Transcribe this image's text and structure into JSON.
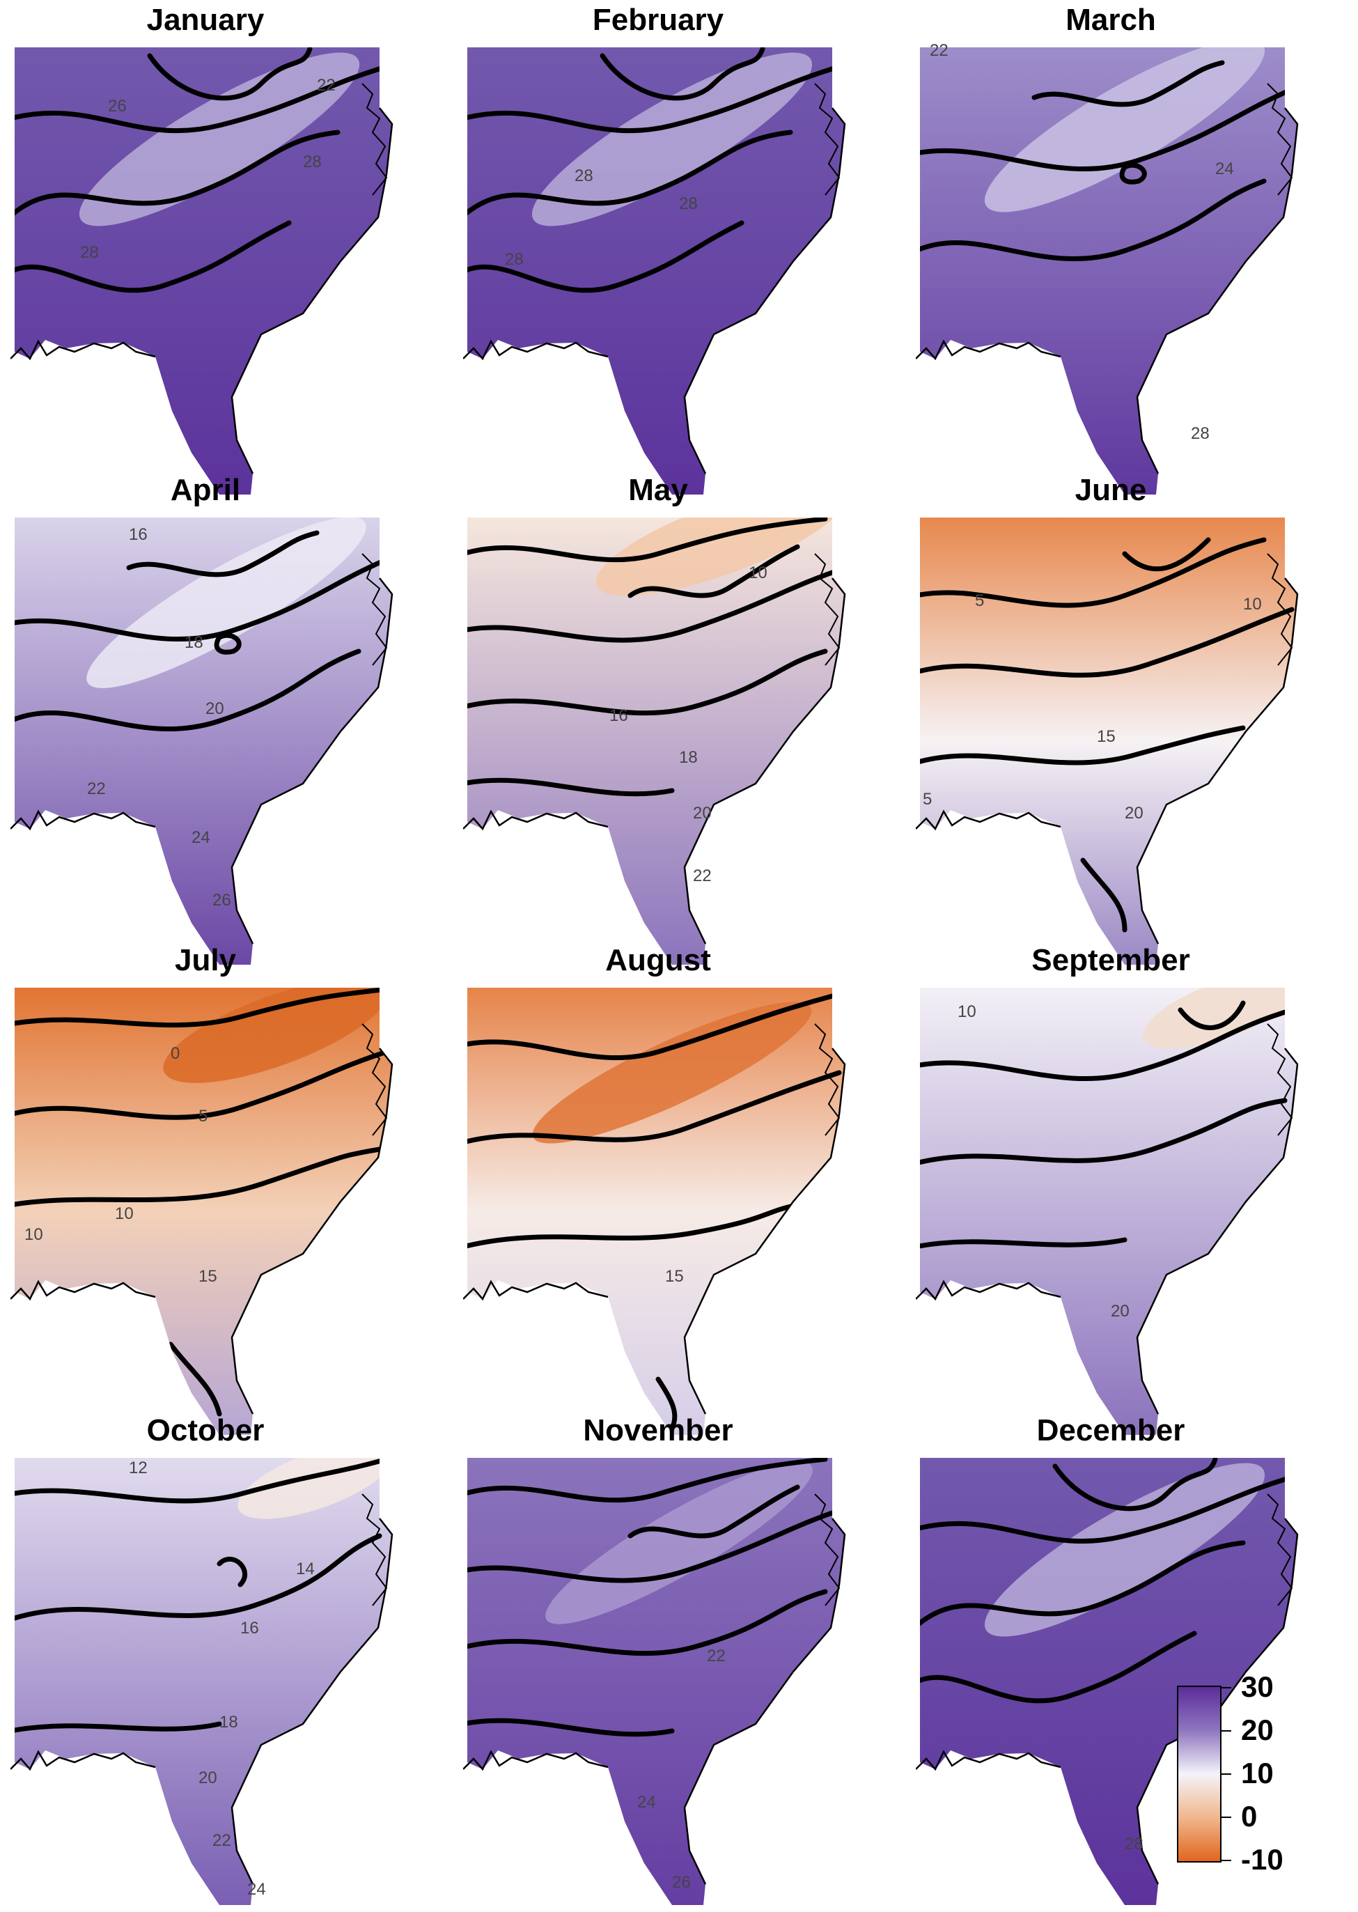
{
  "figure": {
    "panels": [
      {
        "title": "January",
        "scheme": 0,
        "labels": [
          "22",
          "26",
          "28",
          "28"
        ]
      },
      {
        "title": "February",
        "scheme": 0,
        "labels": [
          "28",
          "28",
          "28"
        ]
      },
      {
        "title": "March",
        "scheme": 1,
        "labels": [
          "22",
          "24",
          "28"
        ]
      },
      {
        "title": "April",
        "scheme": 2,
        "labels": [
          "16",
          "18",
          "20",
          "22",
          "24",
          "26"
        ]
      },
      {
        "title": "May",
        "scheme": 3,
        "labels": [
          "10",
          "16",
          "18",
          "20",
          "22"
        ]
      },
      {
        "title": "June",
        "scheme": 4,
        "labels": [
          "5",
          "10",
          "15",
          "20",
          "5"
        ]
      },
      {
        "title": "July",
        "scheme": 5,
        "labels": [
          "0",
          "5",
          "10",
          "10",
          "15"
        ]
      },
      {
        "title": "August",
        "scheme": 6,
        "labels": [
          "15"
        ]
      },
      {
        "title": "September",
        "scheme": 7,
        "labels": [
          "10",
          "20"
        ]
      },
      {
        "title": "October",
        "scheme": 8,
        "labels": [
          "12",
          "14",
          "16",
          "18",
          "20",
          "22",
          "24"
        ]
      },
      {
        "title": "November",
        "scheme": 9,
        "labels": [
          "22",
          "24",
          "26"
        ]
      },
      {
        "title": "December",
        "scheme": 0,
        "labels": [
          "28"
        ]
      }
    ],
    "legend": {
      "ticks": [
        "30",
        "20",
        "10",
        "0",
        "-10"
      ],
      "tick_values": [
        30,
        20,
        10,
        0,
        -10
      ],
      "range": [
        -10,
        30
      ],
      "colors": [
        "#5b2d99",
        "#8f76bf",
        "#f5f3fa",
        "#f0b78d",
        "#e0661f"
      ]
    }
  }
}
